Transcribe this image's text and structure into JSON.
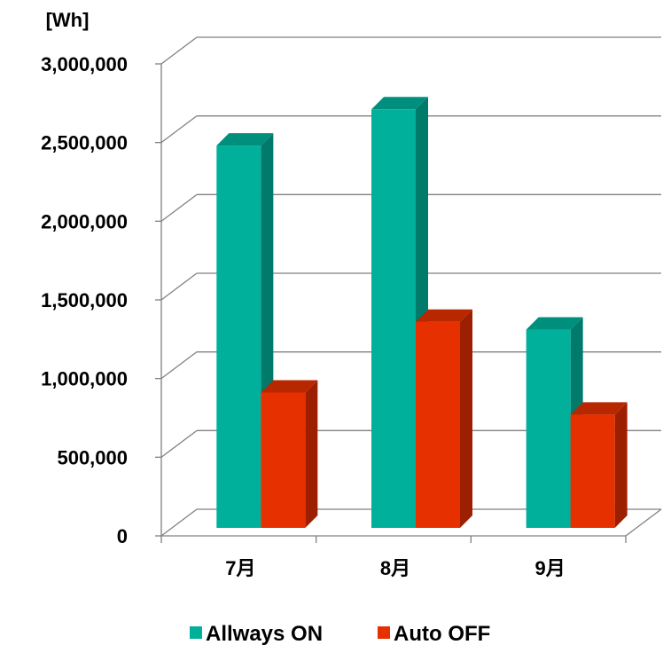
{
  "chart_data": {
    "type": "bar",
    "style": "3d-clustered-column",
    "ylabel": "[Wh]",
    "categories": [
      "7月",
      "8月",
      "9月"
    ],
    "series": [
      {
        "name": "Allways ON",
        "values": [
          2430000,
          2660000,
          1260000
        ],
        "color": "#00b09a",
        "side_color": "#007a6b",
        "top_color": "#008f7d"
      },
      {
        "name": "Auto OFF",
        "values": [
          860000,
          1310000,
          720000
        ],
        "color": "#e63000",
        "side_color": "#9c1f00",
        "top_color": "#b82800"
      }
    ],
    "ylim": [
      0,
      3000000
    ],
    "yticks": [
      0,
      500000,
      1000000,
      1500000,
      2000000,
      2500000,
      3000000
    ],
    "ytick_labels": [
      "0",
      "500,000",
      "1,000,000",
      "1,500,000",
      "2,000,000",
      "2,500,000",
      "3,000,000"
    ],
    "grid": true,
    "legend_position": "bottom",
    "axis_color": "#808080"
  }
}
